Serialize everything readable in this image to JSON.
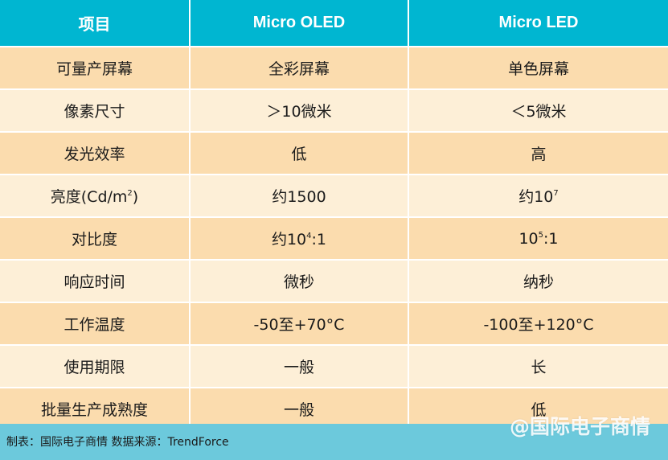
{
  "table": {
    "headers": [
      "项目",
      "Micro OLED",
      "Micro LED"
    ],
    "rows": [
      [
        "可量产屏幕",
        "全彩屏幕",
        "单色屏幕"
      ],
      [
        "像素尺寸",
        "＞10微米",
        "＜5微米"
      ],
      [
        "发光效率",
        "低",
        "高"
      ],
      [
        {
          "text": "亮度(Cd/m",
          "sup": "2",
          "after": ")"
        },
        "约1500",
        {
          "text": "约10",
          "sup": "7",
          "after": ""
        }
      ],
      [
        "对比度",
        {
          "text": "约10",
          "sup": "4",
          "after": ":1"
        },
        {
          "text": "10",
          "sup": "5",
          "after": ":1"
        }
      ],
      [
        "响应时间",
        "微秒",
        "纳秒"
      ],
      [
        "工作温度",
        "-50至+70°C",
        "-100至+120°C"
      ],
      [
        "使用期限",
        "一般",
        "长"
      ],
      [
        "批量生产成熟度",
        "一般",
        "低"
      ]
    ]
  },
  "footer": {
    "caption": "制表：国际电子商情 数据来源：TrendForce"
  },
  "watermark": "@国际电子商情",
  "colors": {
    "header_bg": "#00b6d1",
    "row_odd_bg": "#fbdcae",
    "row_even_bg": "#fdefd7",
    "footer_bg": "#6cc9dc"
  }
}
